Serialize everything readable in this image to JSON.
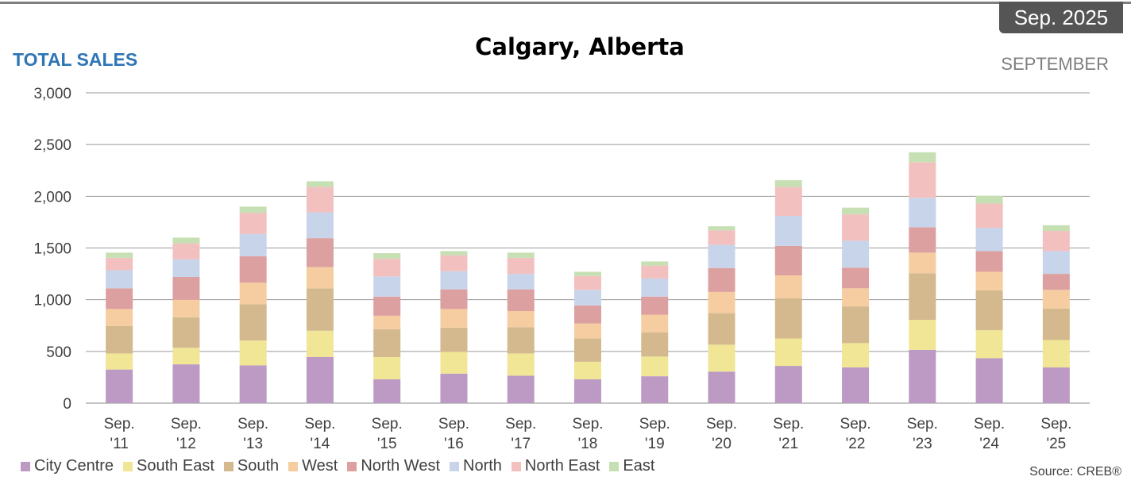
{
  "header": {
    "badge": "Sep. 2025",
    "title": "Calgary, Alberta",
    "subtitle_left": "TOTAL SALES",
    "subtitle_right": "SEPTEMBER",
    "source": "Source: CREB®"
  },
  "chart_data": {
    "type": "bar",
    "stacked": true,
    "title": "Calgary, Alberta",
    "xlabel": "",
    "ylabel": "",
    "ylim": [
      0,
      3000
    ],
    "yticks": [
      0,
      500,
      1000,
      1500,
      2000,
      2500,
      3000
    ],
    "ytick_labels": [
      "0",
      "500",
      "1,000",
      "1,500",
      "2,000",
      "2,500",
      "3,000"
    ],
    "grid": true,
    "legend_position": "bottom",
    "categories": [
      [
        "Sep.",
        "'11"
      ],
      [
        "Sep.",
        "'12"
      ],
      [
        "Sep.",
        "'13"
      ],
      [
        "Sep.",
        "'14"
      ],
      [
        "Sep.",
        "'15"
      ],
      [
        "Sep.",
        "'16"
      ],
      [
        "Sep.",
        "'17"
      ],
      [
        "Sep.",
        "'18"
      ],
      [
        "Sep.",
        "'19"
      ],
      [
        "Sep.",
        "'20"
      ],
      [
        "Sep.",
        "'21"
      ],
      [
        "Sep.",
        "'22"
      ],
      [
        "Sep.",
        "'23"
      ],
      [
        "Sep.",
        "'24"
      ],
      [
        "Sep.",
        "'25"
      ]
    ],
    "series": [
      {
        "name": "City Centre",
        "color": "#bc9ac4",
        "values": [
          325,
          375,
          365,
          445,
          230,
          285,
          265,
          230,
          260,
          305,
          360,
          345,
          515,
          435,
          345
        ]
      },
      {
        "name": "South East",
        "color": "#f0e696",
        "values": [
          155,
          160,
          240,
          255,
          215,
          210,
          215,
          170,
          190,
          260,
          265,
          235,
          290,
          270,
          265
        ]
      },
      {
        "name": "South",
        "color": "#d4b98e",
        "values": [
          265,
          295,
          350,
          410,
          270,
          235,
          255,
          225,
          235,
          305,
          390,
          355,
          450,
          385,
          305
        ]
      },
      {
        "name": "West",
        "color": "#f5cda0",
        "values": [
          165,
          170,
          210,
          205,
          130,
          180,
          155,
          145,
          170,
          205,
          220,
          175,
          200,
          180,
          180
        ]
      },
      {
        "name": "North West",
        "color": "#dda0a0",
        "values": [
          200,
          220,
          255,
          280,
          185,
          190,
          210,
          175,
          175,
          230,
          285,
          200,
          245,
          200,
          155
        ]
      },
      {
        "name": "North",
        "color": "#c8d4ea",
        "values": [
          175,
          170,
          215,
          250,
          195,
          175,
          150,
          150,
          175,
          225,
          290,
          260,
          285,
          225,
          220
        ]
      },
      {
        "name": "North East",
        "color": "#f3c0c0",
        "values": [
          120,
          155,
          205,
          245,
          170,
          155,
          155,
          135,
          125,
          140,
          280,
          255,
          345,
          235,
          195
        ]
      },
      {
        "name": "East",
        "color": "#c6e0b4",
        "values": [
          50,
          55,
          60,
          55,
          55,
          40,
          50,
          40,
          40,
          40,
          65,
          65,
          95,
          75,
          55
        ]
      }
    ]
  }
}
